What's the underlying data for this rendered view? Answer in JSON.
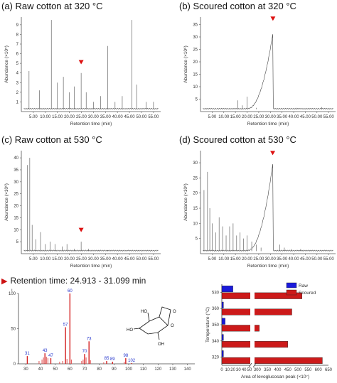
{
  "header_text": "Retention time: 24.913 - 31.099 min",
  "chart_data": [
    {
      "id": "a",
      "type": "line",
      "title": "(a) Raw cotton at 320 °C",
      "xlabel": "Retention time (min)",
      "ylabel": "Abundance (×10⁵)",
      "ylim": [
        0,
        9.8
      ],
      "yticks": [
        1,
        2,
        3,
        4,
        5,
        6,
        7,
        8,
        9
      ],
      "xlim": [
        0,
        58
      ],
      "xticks": [
        "5.00",
        "10.00",
        "15.00",
        "20.00",
        "25.00",
        "30.00",
        "35.00",
        "40.00",
        "45.00",
        "50.00",
        "55.00"
      ],
      "marker_x": 24.9,
      "marker_y": 4.9,
      "peaks": [
        [
          3.2,
          4.2
        ],
        [
          7.5,
          2.2
        ],
        [
          12.5,
          9.5
        ],
        [
          15,
          3.0
        ],
        [
          17.5,
          3.6
        ],
        [
          20,
          2.0
        ],
        [
          22,
          2.6
        ],
        [
          24.9,
          4.0
        ],
        [
          27,
          2.0
        ],
        [
          30,
          1.0
        ],
        [
          33,
          1.6
        ],
        [
          36,
          6.8
        ],
        [
          39,
          1.0
        ],
        [
          42,
          1.6
        ],
        [
          46,
          9.5
        ],
        [
          48,
          2.8
        ],
        [
          52,
          1.0
        ],
        [
          55,
          1.0
        ]
      ]
    },
    {
      "id": "b",
      "type": "line",
      "title": "(b) Scoured cotton at 320 °C",
      "xlabel": "Retention time (min)",
      "ylabel": "Abundance (×10⁶)",
      "ylim": [
        0,
        38
      ],
      "yticks": [
        5,
        10,
        15,
        20,
        25,
        30,
        35
      ],
      "xlim": [
        0,
        58
      ],
      "xticks": [
        "5.00",
        "10.00",
        "15.00",
        "20.00",
        "25.00",
        "30.00",
        "35.00",
        "40.00",
        "45.00",
        "50.00",
        "55.00"
      ],
      "marker_x": 31.1,
      "marker_y": 36.5,
      "peaks": [
        [
          16,
          4.5
        ],
        [
          18,
          2.5
        ],
        [
          20,
          6.0
        ],
        [
          24,
          1.5
        ],
        [
          36,
          1.0
        ],
        [
          41,
          1.5
        ],
        [
          45,
          1.0
        ],
        [
          52,
          1.8
        ],
        [
          55,
          1.0
        ]
      ]
    },
    {
      "id": "c",
      "type": "line",
      "title": "(c) Raw cotton at 530 °C",
      "xlabel": "Retention time (min)",
      "ylabel": "Abundance (×10⁶)",
      "ylim": [
        0,
        43
      ],
      "yticks": [
        5,
        10,
        15,
        20,
        25,
        30,
        35,
        40
      ],
      "xlim": [
        0,
        58
      ],
      "xticks": [
        "5.00",
        "10.00",
        "15.00",
        "20.00",
        "25.00",
        "30.00",
        "35.00",
        "40.00",
        "45.00",
        "50.00",
        "55.00"
      ],
      "marker_x": 24.9,
      "marker_y": 9.0,
      "peaks": [
        [
          2.5,
          37
        ],
        [
          3.5,
          40
        ],
        [
          4.5,
          12
        ],
        [
          6,
          6
        ],
        [
          8,
          9
        ],
        [
          10,
          4
        ],
        [
          12,
          5
        ],
        [
          14,
          4
        ],
        [
          17,
          3
        ],
        [
          19,
          4
        ],
        [
          22,
          2
        ],
        [
          24.9,
          5
        ],
        [
          28,
          2
        ],
        [
          32,
          1.5
        ],
        [
          36,
          1.5
        ],
        [
          40,
          1
        ],
        [
          45,
          1
        ],
        [
          50,
          1
        ]
      ]
    },
    {
      "id": "d",
      "type": "line",
      "title": "(d) Scoured cotton at 530 °C",
      "xlabel": "Retention time (min)",
      "ylabel": "Abundance (×10⁶)",
      "ylim": [
        0,
        34
      ],
      "yticks": [
        5,
        10,
        15,
        20,
        25,
        30
      ],
      "xlim": [
        0,
        58
      ],
      "xticks": [
        "5.00",
        "10.00",
        "15.00",
        "20.00",
        "25.00",
        "30.00",
        "35.00",
        "40.00",
        "45.00",
        "50.00",
        "55.00"
      ],
      "marker_x": 31.0,
      "marker_y": 32.5,
      "peaks": [
        [
          1.5,
          21
        ],
        [
          3,
          27
        ],
        [
          4,
          15
        ],
        [
          5,
          10
        ],
        [
          6.5,
          7
        ],
        [
          8,
          12
        ],
        [
          9.5,
          9
        ],
        [
          11,
          6
        ],
        [
          12.5,
          9
        ],
        [
          14,
          10
        ],
        [
          15.5,
          6
        ],
        [
          17,
          7
        ],
        [
          18.5,
          5
        ],
        [
          20,
          6
        ],
        [
          22,
          4
        ],
        [
          24,
          3
        ],
        [
          26,
          2
        ],
        [
          34,
          3
        ],
        [
          36,
          2
        ],
        [
          39,
          1.5
        ],
        [
          43,
          1.5
        ],
        [
          47,
          1
        ],
        [
          50,
          1
        ]
      ]
    },
    {
      "id": "mass-spectrum",
      "type": "bar",
      "xlim": [
        25,
        145
      ],
      "xticks": [
        30,
        40,
        50,
        60,
        70,
        80,
        90,
        100,
        110,
        120,
        130,
        140
      ],
      "ylim": [
        0,
        100
      ],
      "yticks": [
        0,
        50,
        100
      ],
      "y_top_label": "ı",
      "labeled_peaks": [
        {
          "mz": 31,
          "value": 11,
          "label": "31"
        },
        {
          "mz": 43,
          "value": 15,
          "label": "43"
        },
        {
          "mz": 47,
          "value": 8,
          "label": "47"
        },
        {
          "mz": 57,
          "value": 52,
          "label": "57"
        },
        {
          "mz": 60,
          "value": 100,
          "label": "60"
        },
        {
          "mz": 70,
          "value": 14,
          "label": "70"
        },
        {
          "mz": 73,
          "value": 32,
          "label": "73"
        },
        {
          "mz": 85,
          "value": 4,
          "label": "85"
        },
        {
          "mz": 89,
          "value": 3,
          "label": "89"
        },
        {
          "mz": 98,
          "value": 8,
          "label": "98"
        },
        {
          "mz": 102,
          "value": 1,
          "label": "102"
        }
      ],
      "minor_peaks": [
        [
          39,
          4
        ],
        [
          41,
          6
        ],
        [
          42,
          9
        ],
        [
          44,
          10
        ],
        [
          45,
          8
        ],
        [
          53,
          3
        ],
        [
          55,
          4
        ],
        [
          58,
          7
        ],
        [
          61,
          6
        ],
        [
          68,
          4
        ],
        [
          69,
          6
        ],
        [
          71,
          9
        ],
        [
          74,
          5
        ],
        [
          83,
          2
        ],
        [
          97,
          3
        ]
      ],
      "structure_labels": [
        "HO",
        "HO",
        "OH",
        "O",
        "O"
      ]
    },
    {
      "id": "levoglucosan-area",
      "type": "bar",
      "orientation": "horizontal",
      "xlabel": "Area of levoglucosan peak (×10⁷)",
      "ylabel": "Temperature (°C)",
      "categories": [
        "530",
        "360",
        "350",
        "340",
        "320"
      ],
      "axis_break": [
        50,
        290
      ],
      "xticks": [
        0,
        10,
        20,
        30,
        40,
        50,
        300,
        350,
        400,
        450,
        500,
        550,
        600,
        650
      ],
      "series": [
        {
          "name": "Raw",
          "color": "#1a1adb",
          "values": [
            20,
            3,
            6,
            3,
            3
          ]
        },
        {
          "name": "Scoured",
          "color": "#cc1a1a",
          "values": [
            520,
            470,
            310,
            450,
            620
          ]
        }
      ],
      "legend": "top-right"
    }
  ]
}
